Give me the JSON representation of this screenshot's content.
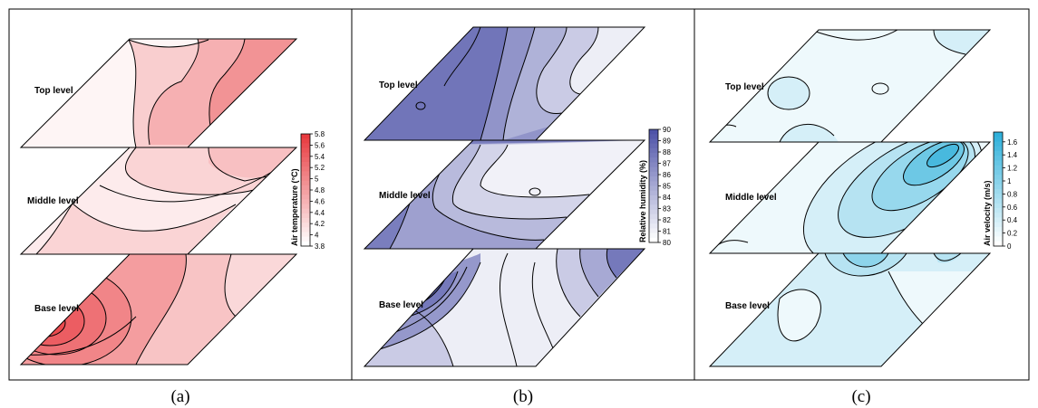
{
  "chart_data": [
    {
      "type": "heatmap",
      "caption": "(a)",
      "levels": [
        "Top level",
        "Middle level",
        "Base level"
      ],
      "colorbar_title": "Air temperature (°C)",
      "colorbar_ticks": [
        5.8,
        5.6,
        5.4,
        5.2,
        5,
        4.8,
        4.6,
        4.4,
        4.2,
        4,
        3.8
      ],
      "colorbar_tick_labels": [
        "5.8",
        "5.6",
        "5.4",
        "5.2",
        "5",
        "4.8",
        "4.6",
        "4.4",
        "4.2",
        "4",
        "3.8"
      ],
      "vmin": 3.8,
      "vmax": 5.8,
      "color_low": "#ffffff",
      "color_high": "#e83a3f"
    },
    {
      "type": "heatmap",
      "caption": "(b)",
      "levels": [
        "Top level",
        "Middle level",
        "Base level"
      ],
      "colorbar_title": "Relative humidity (%)",
      "colorbar_ticks": [
        90,
        89,
        88,
        87,
        86,
        85,
        84,
        83,
        82,
        81,
        80
      ],
      "colorbar_tick_labels": [
        "90",
        "89",
        "88",
        "87",
        "86",
        "85",
        "84",
        "83",
        "82",
        "81",
        "80"
      ],
      "vmin": 80,
      "vmax": 90,
      "color_low": "#ffffff",
      "color_high": "#4e53a8"
    },
    {
      "type": "heatmap",
      "caption": "(c)",
      "levels": [
        "Top level",
        "Middle level",
        "Base level"
      ],
      "colorbar_title": "Air velocity (m/s)",
      "colorbar_ticks": [
        1.6,
        1.4,
        1.2,
        1,
        0.8,
        0.6,
        0.4,
        0.2,
        0
      ],
      "colorbar_tick_labels": [
        "1.6",
        "1.4",
        "1.2",
        "1",
        "0.8",
        "0.6",
        "0.4",
        "0.2",
        "0"
      ],
      "vmin": 0,
      "vmax": 1.75,
      "color_low": "#ffffff",
      "color_high": "#2fb0da"
    }
  ]
}
